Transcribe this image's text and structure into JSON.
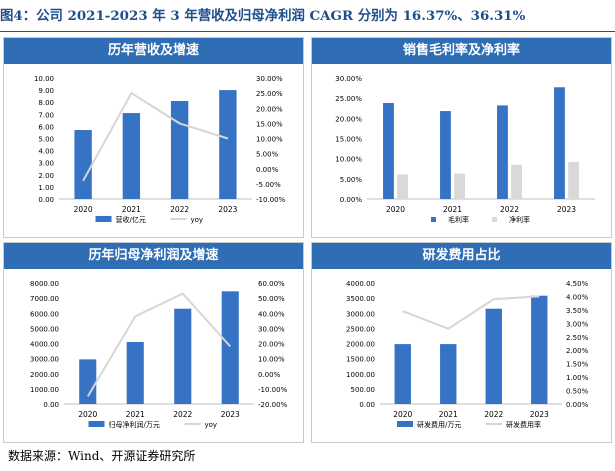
{
  "figure_title": "图4：公司 2021-2023 年 3 年营收及归母净利润 CAGR 分别为 16.37%、36.31%",
  "source": "数据来源：Wind、开源证券研究所",
  "colors": {
    "bar_blue": "#3673c4",
    "bar_gray": "#d9d9d9",
    "line_gray": "#d6d6d6",
    "header_blue": "#2f6db5",
    "title_blue": "#1f4e8c"
  },
  "chart_data": [
    {
      "title": "历年营收及增速",
      "type": "bar",
      "categories": [
        "2020",
        "2021",
        "2022",
        "2023"
      ],
      "series": [
        {
          "name": "营收/亿元",
          "kind": "bar",
          "axis": "left",
          "values": [
            5.7,
            7.1,
            8.1,
            9.0
          ]
        },
        {
          "name": "yoy",
          "kind": "line",
          "axis": "right",
          "values": [
            -0.04,
            0.25,
            0.15,
            0.1
          ]
        }
      ],
      "left_axis": {
        "ticks": [
          "10.00",
          "9.00",
          "8.00",
          "7.00",
          "6.00",
          "5.00",
          "4.00",
          "3.00",
          "2.00",
          "1.00",
          "0.00"
        ],
        "min": 0,
        "max": 10
      },
      "right_axis": {
        "ticks": [
          "30.00%",
          "25.00%",
          "20.00%",
          "15.00%",
          "10.00%",
          "5.00%",
          "0.00%",
          "-5.00%",
          "-10.00%"
        ],
        "min": -0.1,
        "max": 0.3
      }
    },
    {
      "title": "销售毛利率及净利率",
      "type": "bar",
      "categories": [
        "2020",
        "2021",
        "2022",
        "2023"
      ],
      "series": [
        {
          "name": "毛利率",
          "kind": "bar",
          "axis": "left",
          "values": [
            0.238,
            0.218,
            0.232,
            0.277
          ]
        },
        {
          "name": "净利率",
          "kind": "bar",
          "axis": "left",
          "values": [
            0.061,
            0.063,
            0.085,
            0.092
          ]
        }
      ],
      "left_axis": {
        "ticks": [
          "30.00%",
          "25.00%",
          "20.00%",
          "15.00%",
          "10.00%",
          "5.00%",
          "0.00%"
        ],
        "min": 0,
        "max": 0.3
      }
    },
    {
      "title": "历年归母净利润及增速",
      "type": "bar",
      "categories": [
        "2020",
        "2021",
        "2022",
        "2023"
      ],
      "series": [
        {
          "name": "归母净利润/万元",
          "kind": "bar",
          "axis": "left",
          "values": [
            2950,
            4100,
            6300,
            7450
          ]
        },
        {
          "name": "yoy",
          "kind": "line",
          "axis": "right",
          "values": [
            -0.15,
            0.38,
            0.53,
            0.18
          ]
        }
      ],
      "left_axis": {
        "ticks": [
          "8000.00",
          "7000.00",
          "6000.00",
          "5000.00",
          "4000.00",
          "3000.00",
          "2000.00",
          "1000.00",
          "0.00"
        ],
        "min": 0,
        "max": 8000
      },
      "right_axis": {
        "ticks": [
          "60.00%",
          "50.00%",
          "40.00%",
          "30.00%",
          "20.00%",
          "10.00%",
          "0.00%",
          "-10.00%",
          "-20.00%"
        ],
        "min": -0.2,
        "max": 0.6
      }
    },
    {
      "title": "研发费用占比",
      "type": "bar",
      "categories": [
        "2020",
        "2021",
        "2022",
        "2023"
      ],
      "series": [
        {
          "name": "研发费用/万元",
          "kind": "bar",
          "axis": "left",
          "values": [
            1980,
            1980,
            3150,
            3580
          ]
        },
        {
          "name": "研发费用率",
          "kind": "line",
          "axis": "right",
          "values": [
            0.0345,
            0.028,
            0.039,
            0.04
          ]
        }
      ],
      "left_axis": {
        "ticks": [
          "4000.00",
          "3500.00",
          "3000.00",
          "2500.00",
          "2000.00",
          "1500.00",
          "1000.00",
          "500.00",
          "0.00"
        ],
        "min": 0,
        "max": 4000
      },
      "right_axis": {
        "ticks": [
          "4.50%",
          "4.00%",
          "3.50%",
          "3.00%",
          "2.50%",
          "2.00%",
          "1.50%",
          "1.00%",
          "0.50%",
          "0.00%"
        ],
        "min": 0,
        "max": 0.045
      }
    }
  ]
}
